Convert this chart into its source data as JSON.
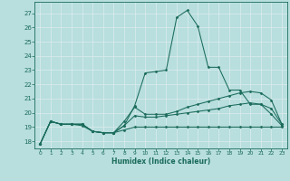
{
  "xlabel": "Humidex (Indice chaleur)",
  "xlim": [
    -0.5,
    23.5
  ],
  "ylim": [
    17.5,
    27.8
  ],
  "yticks": [
    18,
    19,
    20,
    21,
    22,
    23,
    24,
    25,
    26,
    27
  ],
  "xticks": [
    0,
    1,
    2,
    3,
    4,
    5,
    6,
    7,
    8,
    9,
    10,
    11,
    12,
    13,
    14,
    15,
    16,
    17,
    18,
    19,
    20,
    21,
    22,
    23
  ],
  "background_color": "#b8dede",
  "grid_color": "#d8eaea",
  "line_color": "#1a6b5a",
  "curves": [
    {
      "x": [
        0,
        1,
        2,
        3,
        4,
        5,
        6,
        7,
        8,
        9,
        10,
        11,
        12,
        13,
        14,
        15,
        16,
        17,
        18,
        19,
        20,
        21,
        22,
        23
      ],
      "y": [
        17.8,
        19.4,
        19.2,
        19.2,
        19.2,
        18.7,
        18.6,
        18.6,
        19.1,
        20.5,
        22.8,
        22.9,
        23.0,
        26.7,
        27.2,
        26.1,
        23.2,
        23.2,
        21.6,
        21.6,
        20.6,
        20.6,
        19.9,
        19.1
      ]
    },
    {
      "x": [
        0,
        1,
        2,
        3,
        4,
        5,
        6,
        7,
        8,
        9,
        10,
        11,
        12,
        13,
        14,
        15,
        16,
        17,
        18,
        19,
        20,
        21,
        22,
        23
      ],
      "y": [
        17.8,
        19.4,
        19.2,
        19.2,
        19.2,
        18.7,
        18.6,
        18.6,
        19.4,
        20.4,
        19.9,
        19.9,
        19.9,
        20.1,
        20.4,
        20.6,
        20.8,
        21.0,
        21.2,
        21.4,
        21.5,
        21.4,
        20.9,
        19.2
      ]
    },
    {
      "x": [
        0,
        1,
        2,
        3,
        4,
        5,
        6,
        7,
        8,
        9,
        10,
        11,
        12,
        13,
        14,
        15,
        16,
        17,
        18,
        19,
        20,
        21,
        22,
        23
      ],
      "y": [
        17.8,
        19.4,
        19.2,
        19.2,
        19.2,
        18.7,
        18.6,
        18.6,
        19.1,
        19.8,
        19.7,
        19.7,
        19.8,
        19.9,
        20.0,
        20.1,
        20.2,
        20.3,
        20.5,
        20.6,
        20.7,
        20.6,
        20.3,
        19.2
      ]
    },
    {
      "x": [
        0,
        1,
        2,
        3,
        4,
        5,
        6,
        7,
        8,
        9,
        10,
        11,
        12,
        13,
        14,
        15,
        16,
        17,
        18,
        19,
        20,
        21,
        22,
        23
      ],
      "y": [
        17.8,
        19.4,
        19.2,
        19.2,
        19.1,
        18.7,
        18.6,
        18.6,
        18.8,
        19.0,
        19.0,
        19.0,
        19.0,
        19.0,
        19.0,
        19.0,
        19.0,
        19.0,
        19.0,
        19.0,
        19.0,
        19.0,
        19.0,
        19.0
      ]
    }
  ]
}
